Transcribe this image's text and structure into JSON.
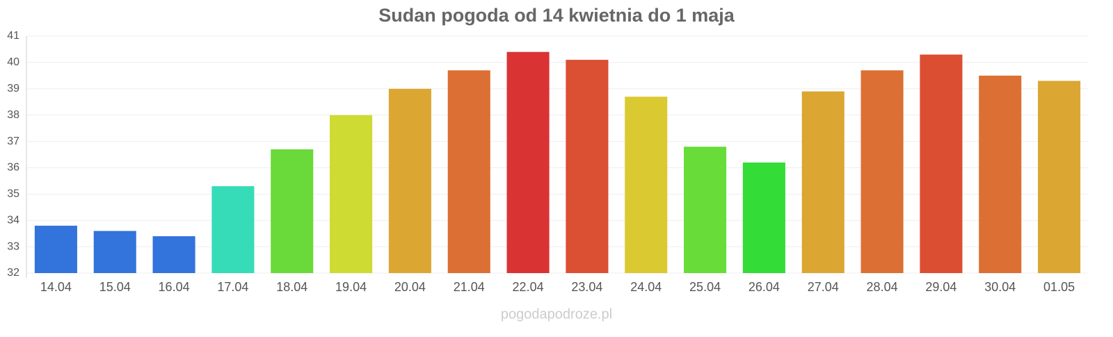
{
  "chart_data": {
    "type": "bar",
    "title": "Sudan pogoda od 14 kwietnia do 1 maja",
    "categories": [
      "14.04",
      "15.04",
      "16.04",
      "17.04",
      "18.04",
      "19.04",
      "20.04",
      "21.04",
      "22.04",
      "23.04",
      "24.04",
      "25.04",
      "26.04",
      "27.04",
      "28.04",
      "29.04",
      "30.04",
      "01.05"
    ],
    "values": [
      33.8,
      33.6,
      33.4,
      35.3,
      36.7,
      38.0,
      39.0,
      39.7,
      40.4,
      40.1,
      38.7,
      36.8,
      36.2,
      38.9,
      39.7,
      40.3,
      39.5,
      39.3
    ],
    "colors": [
      "#3373dc",
      "#3373dc",
      "#3373dc",
      "#36dcb8",
      "#6ad93a",
      "#cedb32",
      "#dba632",
      "#dc6f33",
      "#da3333",
      "#db4f33",
      "#dbc932",
      "#68dc38",
      "#34dc38",
      "#dba632",
      "#dc6f33",
      "#db4e32",
      "#dc6f33",
      "#dba632"
    ],
    "ylim": [
      32,
      41
    ],
    "yticks": [
      32,
      33,
      34,
      35,
      36,
      37,
      38,
      39,
      40,
      41
    ],
    "grid": true,
    "source": "pogodapodroze.pl"
  }
}
